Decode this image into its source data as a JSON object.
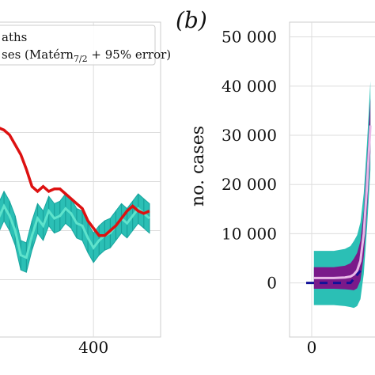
{
  "panel_label": "(b)",
  "legend": {
    "line1": "aths",
    "line2": "ses (Matérn",
    "line2_sub": "7/2",
    "line2_tail": " + 95% error)"
  },
  "chart_data": [
    {
      "type": "line",
      "panel": "a",
      "x_ticks": [
        {
          "value": 400,
          "label": "400"
        }
      ],
      "xlim": [
        230,
        520
      ],
      "ylim": [
        0,
        1
      ],
      "grid": true,
      "legend_placement": "top",
      "series": [
        {
          "color": "#dd1111",
          "x": [
            230,
            240,
            250,
            260,
            270,
            280,
            290,
            300,
            310,
            320,
            330,
            340,
            350,
            360,
            370,
            380,
            390,
            400,
            410,
            420,
            430,
            440,
            450,
            460,
            470,
            480,
            490,
            500
          ],
          "y": [
            0.77,
            0.76,
            0.74,
            0.7,
            0.66,
            0.6,
            0.53,
            0.51,
            0.53,
            0.51,
            0.52,
            0.52,
            0.5,
            0.48,
            0.46,
            0.44,
            0.39,
            0.36,
            0.33,
            0.33,
            0.35,
            0.37,
            0.4,
            0.43,
            0.45,
            0.43,
            0.42,
            0.43
          ]
        },
        {
          "color": "#5fe3cc",
          "band_color": "#2bbfb5",
          "x": [
            230,
            240,
            250,
            260,
            270,
            280,
            290,
            300,
            310,
            320,
            330,
            340,
            350,
            360,
            370,
            380,
            390,
            400,
            410,
            420,
            430,
            440,
            450,
            460,
            470,
            480,
            490,
            500
          ],
          "y": [
            0.4,
            0.45,
            0.41,
            0.35,
            0.25,
            0.24,
            0.33,
            0.4,
            0.37,
            0.43,
            0.4,
            0.41,
            0.44,
            0.42,
            0.38,
            0.37,
            0.32,
            0.28,
            0.31,
            0.33,
            0.34,
            0.37,
            0.4,
            0.38,
            0.41,
            0.44,
            0.42,
            0.4
          ],
          "band": 0.06
        }
      ]
    },
    {
      "type": "line",
      "panel": "b",
      "ylabel": "no. cases",
      "y_ticks": [
        {
          "value": 0,
          "label": "0"
        },
        {
          "value": 10000,
          "label": "10 000"
        },
        {
          "value": 20000,
          "label": "20 000"
        },
        {
          "value": 30000,
          "label": "30 000"
        },
        {
          "value": 40000,
          "label": "40 000"
        },
        {
          "value": 50000,
          "label": "50 000"
        }
      ],
      "x_ticks": [
        {
          "value": 0,
          "label": "0"
        }
      ],
      "xlim": [
        -20,
        60
      ],
      "ylim": [
        -11000,
        53000
      ],
      "grid": true,
      "series": [
        {
          "color": "#111199",
          "style": "dashed",
          "x": [
            -5,
            2,
            35,
            44
          ],
          "y": [
            0,
            0,
            0,
            2500
          ]
        },
        {
          "color": "#e8b8e8",
          "band_inner_color": "#7a1a8a",
          "band_outer_color": "#2bbfb5",
          "x": [
            2,
            10,
            20,
            30,
            35,
            38,
            41,
            44,
            47,
            50,
            53
          ],
          "y": [
            1000,
            1000,
            1000,
            1100,
            1300,
            1700,
            2500,
            4500,
            10000,
            20000,
            32000
          ],
          "inner_band": [
            2200,
            2200,
            2200,
            2400,
            2700,
            3200,
            3600,
            4000,
            4500,
            5000,
            5500
          ],
          "outer_band": [
            5500,
            5500,
            5500,
            5800,
            6200,
            6800,
            7200,
            7800,
            8200,
            8600,
            9000
          ]
        }
      ]
    }
  ]
}
